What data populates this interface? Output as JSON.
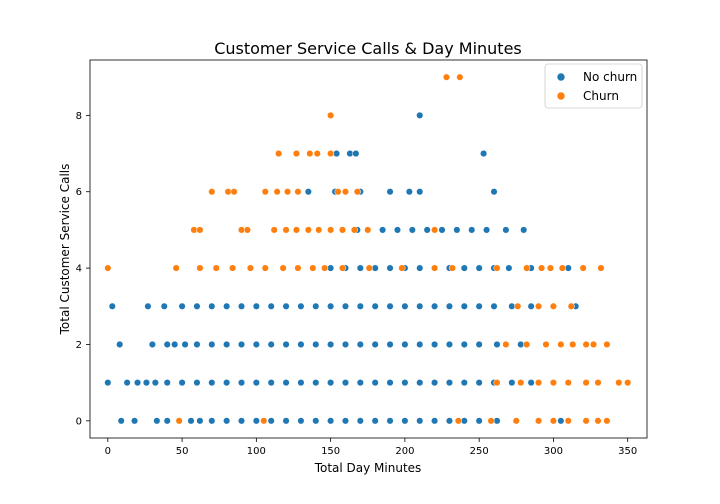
{
  "chart_data": {
    "type": "scatter",
    "title": "Customer Service Calls & Day Minutes",
    "xlabel": "Total Day Minutes",
    "ylabel": "Total Customer Service Calls",
    "xlim": [
      -12,
      363
    ],
    "ylim": [
      -0.45,
      9.45
    ],
    "xticks": [
      0,
      50,
      100,
      150,
      200,
      250,
      300,
      350
    ],
    "yticks": [
      0,
      2,
      4,
      6,
      8
    ],
    "grid": false,
    "legend": "top-right",
    "series": [
      {
        "name": "No churn",
        "color": "#1f77b4",
        "points": [
          {
            "x": 9,
            "y": 0
          },
          {
            "x": 18,
            "y": 0
          },
          {
            "x": 33,
            "y": 0
          },
          {
            "x": 40,
            "y": 0
          },
          {
            "x": 56,
            "y": 0
          },
          {
            "x": 62,
            "y": 0
          },
          {
            "x": 70,
            "y": 0
          },
          {
            "x": 80,
            "y": 0
          },
          {
            "x": 90,
            "y": 0
          },
          {
            "x": 100,
            "y": 0
          },
          {
            "x": 110,
            "y": 0
          },
          {
            "x": 120,
            "y": 0
          },
          {
            "x": 130,
            "y": 0
          },
          {
            "x": 140,
            "y": 0
          },
          {
            "x": 150,
            "y": 0
          },
          {
            "x": 160,
            "y": 0
          },
          {
            "x": 170,
            "y": 0
          },
          {
            "x": 180,
            "y": 0
          },
          {
            "x": 190,
            "y": 0
          },
          {
            "x": 200,
            "y": 0
          },
          {
            "x": 210,
            "y": 0
          },
          {
            "x": 220,
            "y": 0
          },
          {
            "x": 230,
            "y": 0
          },
          {
            "x": 240,
            "y": 0
          },
          {
            "x": 250,
            "y": 0
          },
          {
            "x": 262,
            "y": 0
          },
          {
            "x": 275,
            "y": 0
          },
          {
            "x": 290,
            "y": 0
          },
          {
            "x": 305,
            "y": 0
          },
          {
            "x": 0,
            "y": 1
          },
          {
            "x": 13,
            "y": 1
          },
          {
            "x": 20,
            "y": 1
          },
          {
            "x": 26,
            "y": 1
          },
          {
            "x": 32,
            "y": 1
          },
          {
            "x": 40,
            "y": 1
          },
          {
            "x": 50,
            "y": 1
          },
          {
            "x": 60,
            "y": 1
          },
          {
            "x": 70,
            "y": 1
          },
          {
            "x": 80,
            "y": 1
          },
          {
            "x": 90,
            "y": 1
          },
          {
            "x": 100,
            "y": 1
          },
          {
            "x": 110,
            "y": 1
          },
          {
            "x": 120,
            "y": 1
          },
          {
            "x": 130,
            "y": 1
          },
          {
            "x": 140,
            "y": 1
          },
          {
            "x": 150,
            "y": 1
          },
          {
            "x": 160,
            "y": 1
          },
          {
            "x": 170,
            "y": 1
          },
          {
            "x": 180,
            "y": 1
          },
          {
            "x": 190,
            "y": 1
          },
          {
            "x": 200,
            "y": 1
          },
          {
            "x": 210,
            "y": 1
          },
          {
            "x": 220,
            "y": 1
          },
          {
            "x": 230,
            "y": 1
          },
          {
            "x": 240,
            "y": 1
          },
          {
            "x": 250,
            "y": 1
          },
          {
            "x": 260,
            "y": 1
          },
          {
            "x": 272,
            "y": 1
          },
          {
            "x": 285,
            "y": 1
          },
          {
            "x": 300,
            "y": 1
          },
          {
            "x": 8,
            "y": 2
          },
          {
            "x": 30,
            "y": 2
          },
          {
            "x": 40,
            "y": 2
          },
          {
            "x": 45,
            "y": 2
          },
          {
            "x": 52,
            "y": 2
          },
          {
            "x": 60,
            "y": 2
          },
          {
            "x": 70,
            "y": 2
          },
          {
            "x": 80,
            "y": 2
          },
          {
            "x": 90,
            "y": 2
          },
          {
            "x": 100,
            "y": 2
          },
          {
            "x": 110,
            "y": 2
          },
          {
            "x": 120,
            "y": 2
          },
          {
            "x": 130,
            "y": 2
          },
          {
            "x": 140,
            "y": 2
          },
          {
            "x": 150,
            "y": 2
          },
          {
            "x": 160,
            "y": 2
          },
          {
            "x": 170,
            "y": 2
          },
          {
            "x": 180,
            "y": 2
          },
          {
            "x": 190,
            "y": 2
          },
          {
            "x": 200,
            "y": 2
          },
          {
            "x": 210,
            "y": 2
          },
          {
            "x": 220,
            "y": 2
          },
          {
            "x": 230,
            "y": 2
          },
          {
            "x": 240,
            "y": 2
          },
          {
            "x": 250,
            "y": 2
          },
          {
            "x": 262,
            "y": 2
          },
          {
            "x": 278,
            "y": 2
          },
          {
            "x": 295,
            "y": 2
          },
          {
            "x": 3,
            "y": 3
          },
          {
            "x": 27,
            "y": 3
          },
          {
            "x": 38,
            "y": 3
          },
          {
            "x": 50,
            "y": 3
          },
          {
            "x": 60,
            "y": 3
          },
          {
            "x": 70,
            "y": 3
          },
          {
            "x": 80,
            "y": 3
          },
          {
            "x": 90,
            "y": 3
          },
          {
            "x": 100,
            "y": 3
          },
          {
            "x": 110,
            "y": 3
          },
          {
            "x": 120,
            "y": 3
          },
          {
            "x": 130,
            "y": 3
          },
          {
            "x": 140,
            "y": 3
          },
          {
            "x": 150,
            "y": 3
          },
          {
            "x": 160,
            "y": 3
          },
          {
            "x": 170,
            "y": 3
          },
          {
            "x": 180,
            "y": 3
          },
          {
            "x": 190,
            "y": 3
          },
          {
            "x": 200,
            "y": 3
          },
          {
            "x": 210,
            "y": 3
          },
          {
            "x": 220,
            "y": 3
          },
          {
            "x": 230,
            "y": 3
          },
          {
            "x": 240,
            "y": 3
          },
          {
            "x": 250,
            "y": 3
          },
          {
            "x": 260,
            "y": 3
          },
          {
            "x": 272,
            "y": 3
          },
          {
            "x": 285,
            "y": 3
          },
          {
            "x": 315,
            "y": 3
          },
          {
            "x": 150,
            "y": 4
          },
          {
            "x": 160,
            "y": 4
          },
          {
            "x": 170,
            "y": 4
          },
          {
            "x": 180,
            "y": 4
          },
          {
            "x": 190,
            "y": 4
          },
          {
            "x": 200,
            "y": 4
          },
          {
            "x": 210,
            "y": 4
          },
          {
            "x": 220,
            "y": 4
          },
          {
            "x": 230,
            "y": 4
          },
          {
            "x": 240,
            "y": 4
          },
          {
            "x": 250,
            "y": 4
          },
          {
            "x": 260,
            "y": 4
          },
          {
            "x": 270,
            "y": 4
          },
          {
            "x": 285,
            "y": 4
          },
          {
            "x": 310,
            "y": 4
          },
          {
            "x": 168,
            "y": 5
          },
          {
            "x": 185,
            "y": 5
          },
          {
            "x": 195,
            "y": 5
          },
          {
            "x": 205,
            "y": 5
          },
          {
            "x": 215,
            "y": 5
          },
          {
            "x": 225,
            "y": 5
          },
          {
            "x": 235,
            "y": 5
          },
          {
            "x": 245,
            "y": 5
          },
          {
            "x": 255,
            "y": 5
          },
          {
            "x": 268,
            "y": 5
          },
          {
            "x": 280,
            "y": 5
          },
          {
            "x": 135,
            "y": 6
          },
          {
            "x": 153,
            "y": 6
          },
          {
            "x": 170,
            "y": 6
          },
          {
            "x": 190,
            "y": 6
          },
          {
            "x": 203,
            "y": 6
          },
          {
            "x": 210,
            "y": 6
          },
          {
            "x": 260,
            "y": 6
          },
          {
            "x": 154,
            "y": 7
          },
          {
            "x": 163,
            "y": 7
          },
          {
            "x": 167,
            "y": 7
          },
          {
            "x": 253,
            "y": 7
          },
          {
            "x": 210,
            "y": 8
          }
        ]
      },
      {
        "name": "Churn",
        "color": "#ff7f0e",
        "points": [
          {
            "x": 48,
            "y": 0
          },
          {
            "x": 105,
            "y": 0
          },
          {
            "x": 236,
            "y": 0
          },
          {
            "x": 258,
            "y": 0
          },
          {
            "x": 275,
            "y": 0
          },
          {
            "x": 290,
            "y": 0
          },
          {
            "x": 300,
            "y": 0
          },
          {
            "x": 310,
            "y": 0
          },
          {
            "x": 322,
            "y": 0
          },
          {
            "x": 330,
            "y": 0
          },
          {
            "x": 336,
            "y": 0
          },
          {
            "x": 262,
            "y": 1
          },
          {
            "x": 278,
            "y": 1
          },
          {
            "x": 290,
            "y": 1
          },
          {
            "x": 300,
            "y": 1
          },
          {
            "x": 310,
            "y": 1
          },
          {
            "x": 322,
            "y": 1
          },
          {
            "x": 330,
            "y": 1
          },
          {
            "x": 344,
            "y": 1
          },
          {
            "x": 350,
            "y": 1
          },
          {
            "x": 268,
            "y": 2
          },
          {
            "x": 282,
            "y": 2
          },
          {
            "x": 295,
            "y": 2
          },
          {
            "x": 305,
            "y": 2
          },
          {
            "x": 313,
            "y": 2
          },
          {
            "x": 322,
            "y": 2
          },
          {
            "x": 327,
            "y": 2
          },
          {
            "x": 336,
            "y": 2
          },
          {
            "x": 276,
            "y": 3
          },
          {
            "x": 290,
            "y": 3
          },
          {
            "x": 300,
            "y": 3
          },
          {
            "x": 312,
            "y": 3
          },
          {
            "x": 0,
            "y": 4
          },
          {
            "x": 46,
            "y": 4
          },
          {
            "x": 62,
            "y": 4
          },
          {
            "x": 73,
            "y": 4
          },
          {
            "x": 84,
            "y": 4
          },
          {
            "x": 96,
            "y": 4
          },
          {
            "x": 106,
            "y": 4
          },
          {
            "x": 118,
            "y": 4
          },
          {
            "x": 128,
            "y": 4
          },
          {
            "x": 138,
            "y": 4
          },
          {
            "x": 146,
            "y": 4
          },
          {
            "x": 158,
            "y": 4
          },
          {
            "x": 176,
            "y": 4
          },
          {
            "x": 198,
            "y": 4
          },
          {
            "x": 220,
            "y": 4
          },
          {
            "x": 232,
            "y": 4
          },
          {
            "x": 262,
            "y": 4
          },
          {
            "x": 282,
            "y": 4
          },
          {
            "x": 292,
            "y": 4
          },
          {
            "x": 298,
            "y": 4
          },
          {
            "x": 306,
            "y": 4
          },
          {
            "x": 320,
            "y": 4
          },
          {
            "x": 332,
            "y": 4
          },
          {
            "x": 58,
            "y": 5
          },
          {
            "x": 62,
            "y": 5
          },
          {
            "x": 90,
            "y": 5
          },
          {
            "x": 94,
            "y": 5
          },
          {
            "x": 112,
            "y": 5
          },
          {
            "x": 120,
            "y": 5
          },
          {
            "x": 127,
            "y": 5
          },
          {
            "x": 135,
            "y": 5
          },
          {
            "x": 142,
            "y": 5
          },
          {
            "x": 150,
            "y": 5
          },
          {
            "x": 158,
            "y": 5
          },
          {
            "x": 166,
            "y": 5
          },
          {
            "x": 175,
            "y": 5
          },
          {
            "x": 220,
            "y": 5
          },
          {
            "x": 70,
            "y": 6
          },
          {
            "x": 81,
            "y": 6
          },
          {
            "x": 85,
            "y": 6
          },
          {
            "x": 106,
            "y": 6
          },
          {
            "x": 114,
            "y": 6
          },
          {
            "x": 121,
            "y": 6
          },
          {
            "x": 128,
            "y": 6
          },
          {
            "x": 155,
            "y": 6
          },
          {
            "x": 160,
            "y": 6
          },
          {
            "x": 168,
            "y": 6
          },
          {
            "x": 115,
            "y": 7
          },
          {
            "x": 127,
            "y": 7
          },
          {
            "x": 136,
            "y": 7
          },
          {
            "x": 141,
            "y": 7
          },
          {
            "x": 150,
            "y": 7
          },
          {
            "x": 150,
            "y": 8
          },
          {
            "x": 228,
            "y": 9
          },
          {
            "x": 237,
            "y": 9
          }
        ]
      }
    ]
  }
}
